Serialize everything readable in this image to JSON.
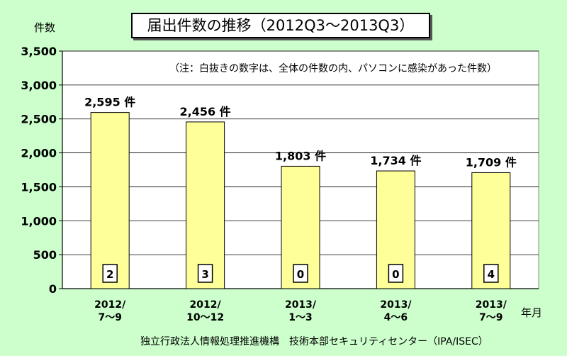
{
  "chart_data": {
    "type": "bar",
    "title": "届出件数の推移（2012Q3～2013Q3）",
    "ylabel": "件数",
    "xlabel": "年月",
    "note": "（注：白抜きの数字は、全体の件数の内、パソコンに感染があった件数）",
    "categories": [
      [
        "2012/",
        "7～9"
      ],
      [
        "2012/",
        "10～12"
      ],
      [
        "2013/",
        "1～3"
      ],
      [
        "2013/",
        "4～6"
      ],
      [
        "2013/",
        "7～9"
      ]
    ],
    "values": [
      2595,
      2456,
      1803,
      1734,
      1709
    ],
    "value_labels": [
      "2,595 件",
      "2,456 件",
      "1,803 件",
      "1,734 件",
      "1,709 件"
    ],
    "pc_infected": [
      "2",
      "3",
      "0",
      "0",
      "4"
    ],
    "ylim": [
      0,
      3500
    ],
    "yticks": [
      "0",
      "500",
      "1,000",
      "1,500",
      "2,000",
      "2,500",
      "3,000",
      "3,500"
    ],
    "grid": true,
    "bar_color": "#ffff99",
    "bar_stroke": "#000000",
    "plot_background": "#ffffff",
    "page_background": "#ccffcc",
    "source": "独立行政法人情報処理推進機構　技術本部セキュリティセンター（IPA/ISEC）"
  }
}
